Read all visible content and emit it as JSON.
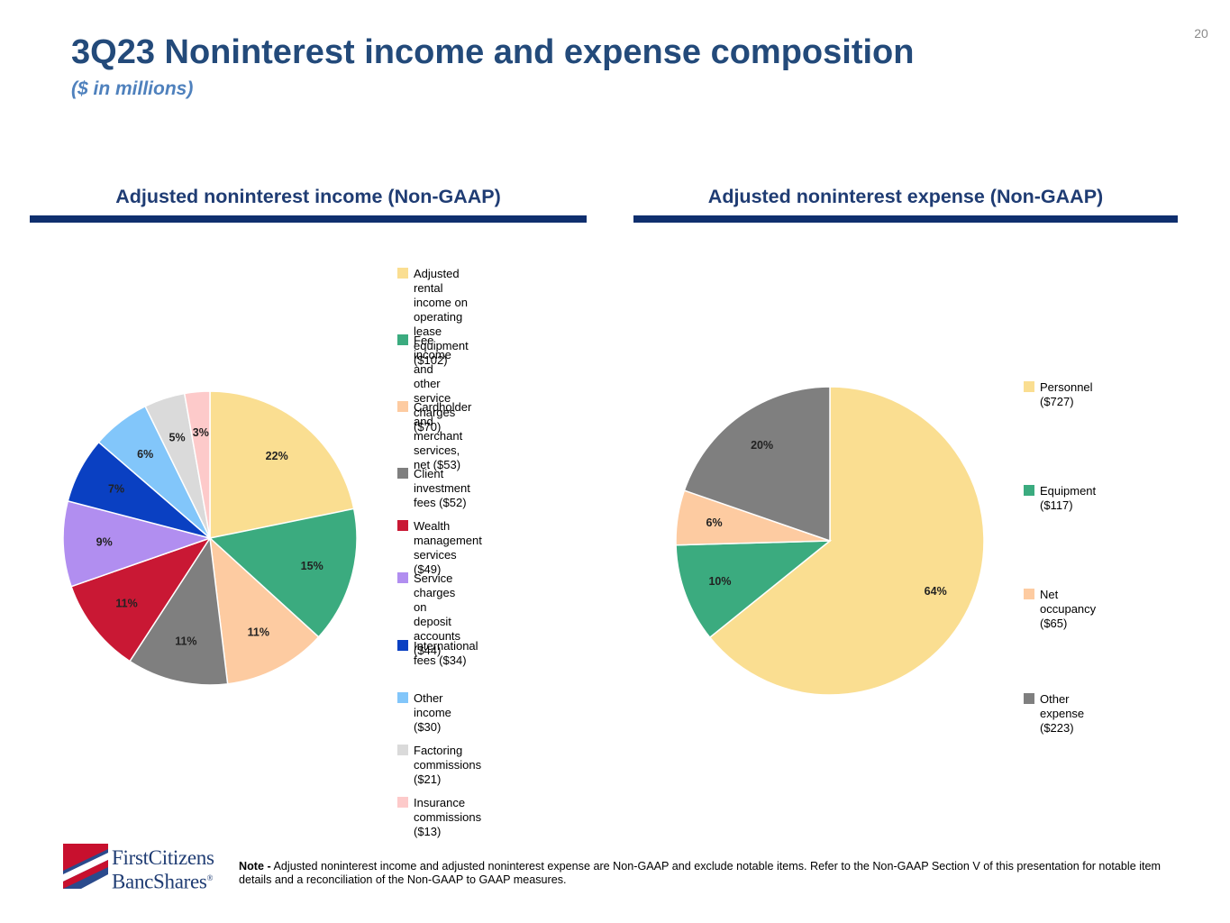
{
  "page": {
    "number": "20",
    "title": "3Q23 Noninterest income and expense composition",
    "subtitle": "($ in millions)"
  },
  "footer": {
    "logo_line1": "FirstCitizens",
    "logo_line2": "BancShares",
    "logo_mark": "®",
    "note_prefix": "Note -",
    "note_text": " Adjusted noninterest income and adjusted noninterest expense are Non-GAAP and exclude notable items. Refer to the Non-GAAP Section V of this presentation for notable item details and a reconciliation of the Non-GAAP to GAAP measures."
  },
  "colors": {
    "title": "#234a7a",
    "subtitle": "#4f81bd",
    "section_heading": "#1f3c73",
    "section_rule": "#0f2f6e"
  },
  "chart_data": [
    {
      "type": "pie",
      "title": "Adjusted noninterest income (Non-GAAP)",
      "start_angle_deg": 0,
      "direction": "clockwise",
      "legend_position": "right",
      "slices": [
        {
          "legend": "Adjusted rental income on\noperating lease equipment ($102)",
          "value": 102,
          "label": "22%",
          "color": "#fade91"
        },
        {
          "legend": "Fee income and other\nservice charges ($70)",
          "value": 70,
          "label": "15%",
          "color": "#3bab7f"
        },
        {
          "legend": "Cardholder and merchant\nservices, net ($53)",
          "value": 53,
          "label": "11%",
          "color": "#fdcba1"
        },
        {
          "legend": "Client investment fees ($52)",
          "value": 52,
          "label": "11%",
          "color": "#7f7f7f"
        },
        {
          "legend": "Wealth management services ($49)",
          "value": 49,
          "label": "11%",
          "color": "#c91834"
        },
        {
          "legend": "Service charges on\ndeposit accounts ($44)",
          "value": 44,
          "label": "9%",
          "color": "#b18ef0"
        },
        {
          "legend": "International fees ($34)",
          "value": 34,
          "label": "7%",
          "color": "#0a40c2"
        },
        {
          "legend": "Other income ($30)",
          "value": 30,
          "label": "6%",
          "color": "#82c6fa"
        },
        {
          "legend": "Factoring commissions ($21)",
          "value": 21,
          "label": "5%",
          "color": "#dadada"
        },
        {
          "legend": "Insurance commissions ($13)",
          "value": 13,
          "label": "3%",
          "color": "#fdcaca"
        }
      ]
    },
    {
      "type": "pie",
      "title": "Adjusted noninterest expense (Non-GAAP)",
      "start_angle_deg": 0,
      "direction": "clockwise",
      "legend_position": "right",
      "slices": [
        {
          "legend": "Personnel ($727)",
          "value": 727,
          "label": "64%",
          "color": "#fade91"
        },
        {
          "legend": "Equipment ($117)",
          "value": 117,
          "label": "10%",
          "color": "#3bab7f"
        },
        {
          "legend": "Net occupancy ($65)",
          "value": 65,
          "label": "6%",
          "color": "#fdcba1"
        },
        {
          "legend": "Other expense ($223)",
          "value": 223,
          "label": "20%",
          "color": "#7f7f7f"
        }
      ]
    }
  ]
}
